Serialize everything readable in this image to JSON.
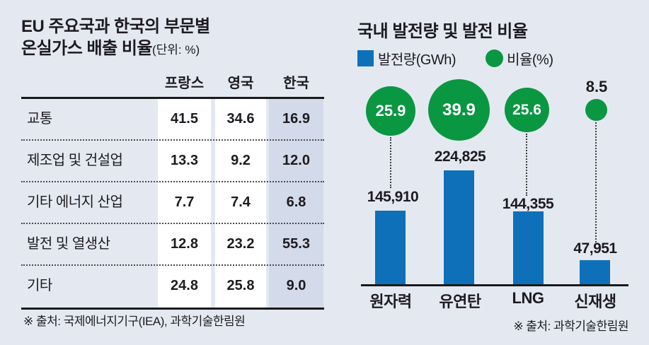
{
  "colors": {
    "background": "#e4e9f1",
    "bar_blue": "#0e70b8",
    "circle_green": "#0a9741",
    "korea_column": "#d3dae9",
    "text": "#1d1b20"
  },
  "left_panel": {
    "title_line1": "EU 주요국과 한국의 부문별",
    "title_line2": "온실가스 배출 비율",
    "unit_label": "(단위: %)",
    "columns": [
      "프랑스",
      "영국",
      "한국"
    ],
    "rows": [
      {
        "label": "교통",
        "france": "41.5",
        "uk": "34.6",
        "korea": "16.9"
      },
      {
        "label": "제조업 및 건설업",
        "france": "13.3",
        "uk": "9.2",
        "korea": "12.0"
      },
      {
        "label": "기타 에너지 산업",
        "france": "7.7",
        "uk": "7.4",
        "korea": "6.8"
      },
      {
        "label": "발전 및 열생산",
        "france": "12.8",
        "uk": "23.2",
        "korea": "55.3"
      },
      {
        "label": "기타",
        "france": "24.8",
        "uk": "25.8",
        "korea": "9.0"
      }
    ],
    "source": "※ 출처: 국제에너지기구(IEA), 과학기술한림원"
  },
  "right_panel": {
    "title": "국내 발전량 및 발전 비율",
    "legend": [
      {
        "label": "발전량(GWh)"
      },
      {
        "label": "비율(%)"
      }
    ],
    "categories": [
      "원자력",
      "유연탄",
      "LNG",
      "신재생"
    ],
    "generation_labels": [
      "145,910",
      "224,825",
      "144,355",
      "47,951"
    ],
    "share_labels": [
      "25.9",
      "39.9",
      "25.6",
      "8.5"
    ],
    "source": "※ 출처: 과학기술한림원"
  },
  "chart_data": [
    {
      "type": "table",
      "title": "EU 주요국과 한국의 부문별 온실가스 배출 비율",
      "unit": "%",
      "columns": [
        "프랑스",
        "영국",
        "한국"
      ],
      "row_labels": [
        "교통",
        "제조업 및 건설업",
        "기타 에너지 산업",
        "발전 및 열생산",
        "기타"
      ],
      "values": [
        [
          41.5,
          34.6,
          16.9
        ],
        [
          13.3,
          9.2,
          12.0
        ],
        [
          7.7,
          7.4,
          6.8
        ],
        [
          12.8,
          23.2,
          55.3
        ],
        [
          24.8,
          25.8,
          9.0
        ]
      ],
      "source": "※ 출처: 국제에너지기구(IEA), 과학기술한림원"
    },
    {
      "type": "bar",
      "title": "국내 발전량 및 발전 비율",
      "categories": [
        "원자력",
        "유연탄",
        "LNG",
        "신재생"
      ],
      "series": [
        {
          "name": "발전량(GWh)",
          "values": [
            145910,
            224825,
            144355,
            47951
          ],
          "mark": "bar",
          "color": "#0e70b8"
        },
        {
          "name": "비율(%)",
          "values": [
            25.9,
            39.9,
            25.6,
            8.5
          ],
          "mark": "bubble",
          "color": "#0a9741"
        }
      ],
      "legend_position": "top",
      "grid": false,
      "source": "※ 출처: 과학기술한림원"
    }
  ]
}
